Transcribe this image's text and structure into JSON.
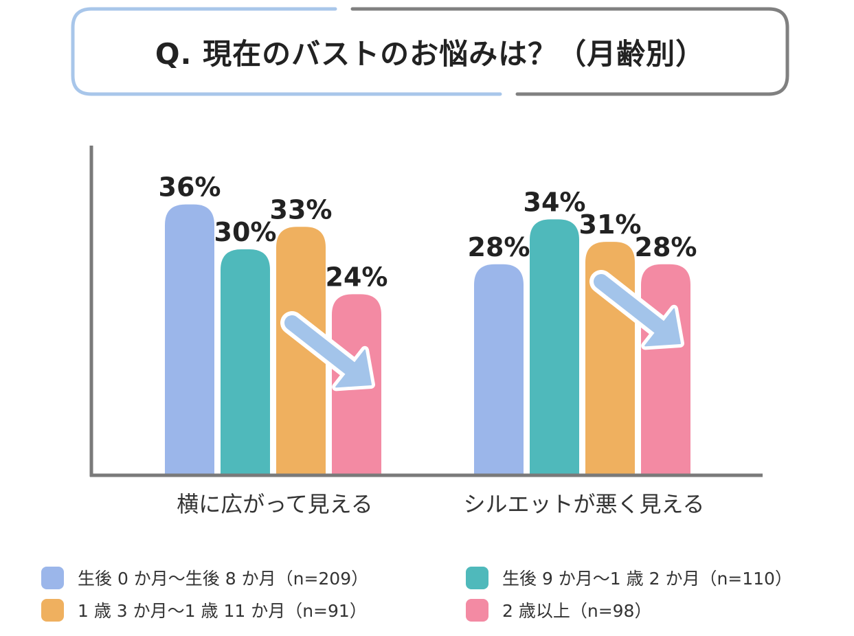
{
  "chart_data": {
    "type": "bar",
    "title": "Q. 現在のバストのお悩みは？（月齢別）",
    "categories": [
      "横に広がって見える",
      "シルエットが悪く見える"
    ],
    "series": [
      {
        "name": "生後 0 か月〜生後 8 か月（n=209）",
        "values": [
          36,
          28
        ],
        "color": "#9bb6ea"
      },
      {
        "name": "生後 9 か月〜1 歳 2 か月（n=110）",
        "values": [
          30,
          34
        ],
        "color": "#4fb9bb"
      },
      {
        "name": "1 歳 3 か月〜1 歳 11 か月（n=91）",
        "values": [
          33,
          31
        ],
        "color": "#efb05f"
      },
      {
        "name": "2 歳以上（n=98）",
        "values": [
          24,
          28
        ],
        "color": "#f38aa3"
      }
    ],
    "value_suffix": "%",
    "ylim": [
      0,
      50
    ],
    "grid": false,
    "legend_position": "bottom"
  }
}
